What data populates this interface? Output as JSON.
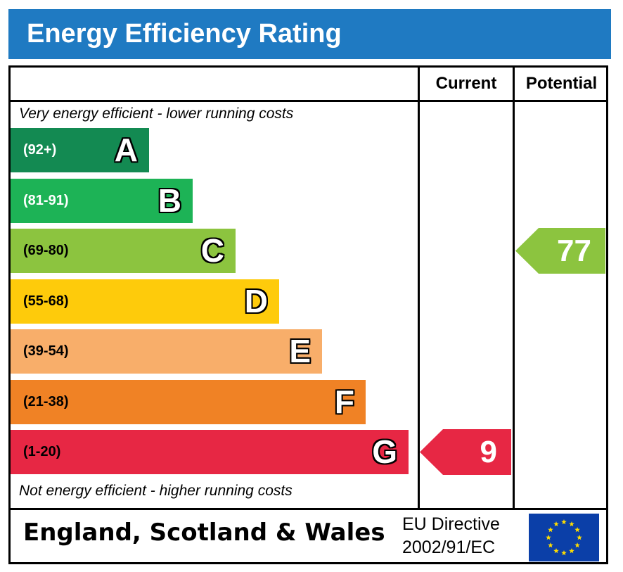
{
  "title": "Energy Efficiency Rating",
  "headers": {
    "current": "Current",
    "potential": "Potential"
  },
  "captions": {
    "top": "Very energy efficient - lower running costs",
    "bottom": "Not energy efficient - higher running costs"
  },
  "chart_data": {
    "type": "bar",
    "bands": [
      {
        "letter": "A",
        "range": "(92+)",
        "color": "#138a52"
      },
      {
        "letter": "B",
        "range": "(81-91)",
        "color": "#1db356"
      },
      {
        "letter": "C",
        "range": "(69-80)",
        "color": "#8cc43f"
      },
      {
        "letter": "D",
        "range": "(55-68)",
        "color": "#fecb0b"
      },
      {
        "letter": "E",
        "range": "(39-54)",
        "color": "#f8ae6a"
      },
      {
        "letter": "F",
        "range": "(21-38)",
        "color": "#f08225"
      },
      {
        "letter": "G",
        "range": "(1-20)",
        "color": "#e72744"
      }
    ],
    "current": {
      "value": "9",
      "band": "G",
      "color": "#e72744"
    },
    "potential": {
      "value": "77",
      "band": "C",
      "color": "#8cc43f"
    }
  },
  "footer": {
    "region": "England, Scotland & Wales",
    "directive_line1": "EU Directive",
    "directive_line2": "2002/91/EC"
  }
}
